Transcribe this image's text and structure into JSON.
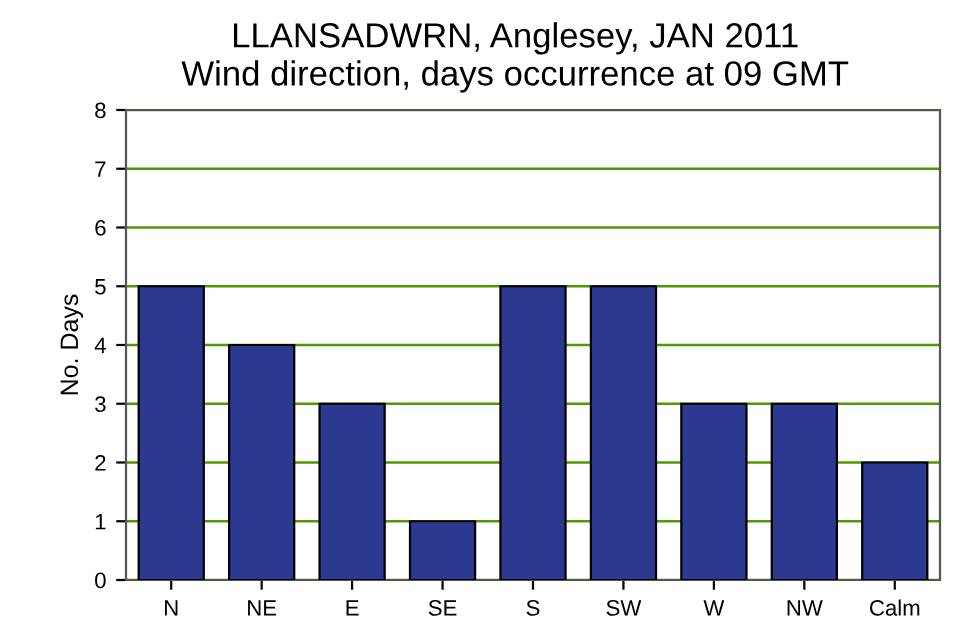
{
  "chart_data": {
    "type": "bar",
    "title": "LLANSADWRN, Anglesey, JAN 2011",
    "subtitle": "Wind direction, days occurrence at 09 GMT",
    "ylabel": "No. Days",
    "categories": [
      "N",
      "NE",
      "E",
      "SE",
      "S",
      "SW",
      "W",
      "NW",
      "Calm"
    ],
    "values": [
      5,
      4,
      3,
      1,
      5,
      5,
      3,
      3,
      2
    ],
    "color": "#2b3990",
    "ylim": [
      0,
      8
    ],
    "yticks": [
      0,
      1,
      2,
      3,
      4,
      5,
      6,
      7,
      8
    ],
    "grid": "y"
  }
}
